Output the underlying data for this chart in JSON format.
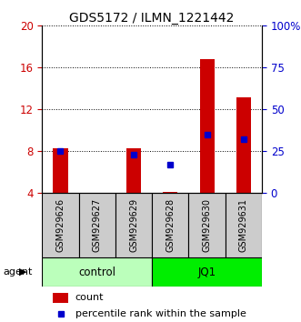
{
  "title": "GDS5172 / ILMN_1221442",
  "samples": [
    "GSM929626",
    "GSM929627",
    "GSM929629",
    "GSM929628",
    "GSM929630",
    "GSM929631"
  ],
  "red_values": [
    8.3,
    4.0,
    8.3,
    4.1,
    16.8,
    13.2
  ],
  "blue_values": [
    25.0,
    null,
    23.0,
    17.0,
    35.0,
    32.0
  ],
  "ylim_left": [
    4,
    20
  ],
  "ylim_right": [
    0,
    100
  ],
  "left_ticks": [
    4,
    8,
    12,
    16,
    20
  ],
  "right_ticks": [
    0,
    25,
    50,
    75,
    100
  ],
  "right_tick_labels": [
    "0",
    "25",
    "50",
    "75",
    "100%"
  ],
  "groups": [
    {
      "label": "control",
      "indices": [
        0,
        1,
        2
      ],
      "color": "#bbffbb"
    },
    {
      "label": "JQ1",
      "indices": [
        3,
        4,
        5
      ],
      "color": "#00ee00"
    }
  ],
  "bar_color": "#cc0000",
  "dot_color": "#0000cc",
  "tick_label_color_left": "#cc0000",
  "tick_label_color_right": "#0000cc",
  "title_color": "#000000",
  "bar_bottom": 4.0,
  "sample_box_color": "#cccccc",
  "legend_items": [
    "count",
    "percentile rank within the sample"
  ],
  "agent_label": "agent"
}
